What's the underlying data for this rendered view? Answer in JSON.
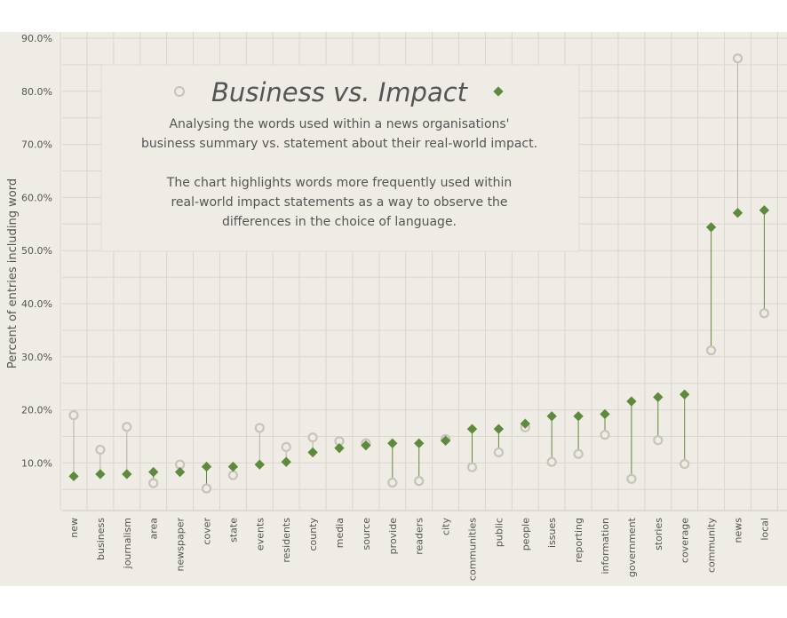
{
  "chart_data": {
    "type": "dumbbell",
    "title": "Business vs. Impact",
    "description": [
      "Analysing the words used within a news organisations'",
      "business summary vs. statement about their real-world impact.",
      "",
      "The chart highlights words more frequently used within",
      "real-world impact statements as a way to observe the",
      "differences in the choice of language."
    ],
    "ylabel": "Percent of entries including word",
    "xlabel": "",
    "ylim": [
      0,
      0.9
    ],
    "yticks": [
      0.1,
      0.2,
      0.3,
      0.4,
      0.5,
      0.6,
      0.7,
      0.8,
      0.9
    ],
    "ytick_labels": [
      "10.0%",
      "20.0%",
      "30.0%",
      "40.0%",
      "50.0%",
      "60.0%",
      "70.0%",
      "80.0%",
      "90.0%"
    ],
    "grid": true,
    "categories": [
      "new",
      "business",
      "journalism",
      "area",
      "newspaper",
      "cover",
      "state",
      "events",
      "residents",
      "county",
      "media",
      "source",
      "provide",
      "readers",
      "city",
      "communities",
      "public",
      "people",
      "issues",
      "reporting",
      "information",
      "government",
      "stories",
      "coverage",
      "community",
      "news",
      "local"
    ],
    "series": [
      {
        "marker": "open-circle",
        "color": "#c8c3bb",
        "values": [
          0.19,
          0.125,
          0.168,
          0.062,
          0.097,
          0.052,
          0.077,
          0.166,
          0.13,
          0.148,
          0.141,
          0.137,
          0.063,
          0.066,
          0.145,
          0.092,
          0.12,
          0.167,
          0.102,
          0.117,
          0.153,
          0.07,
          0.143,
          0.098,
          0.312,
          0.862,
          0.382
        ]
      },
      {
        "marker": "diamond",
        "color": "#5e8a3c",
        "values": [
          0.075,
          0.079,
          0.079,
          0.083,
          0.083,
          0.093,
          0.093,
          0.097,
          0.102,
          0.12,
          0.128,
          0.133,
          0.137,
          0.137,
          0.142,
          0.164,
          0.164,
          0.174,
          0.188,
          0.188,
          0.192,
          0.216,
          0.224,
          0.229,
          0.544,
          0.571,
          0.576
        ]
      }
    ],
    "colors": {
      "background": "#efebe5",
      "grid": "#dcd6cd",
      "connector_up": "#5e8a3c",
      "connector_down": "#b5b0a8"
    }
  }
}
